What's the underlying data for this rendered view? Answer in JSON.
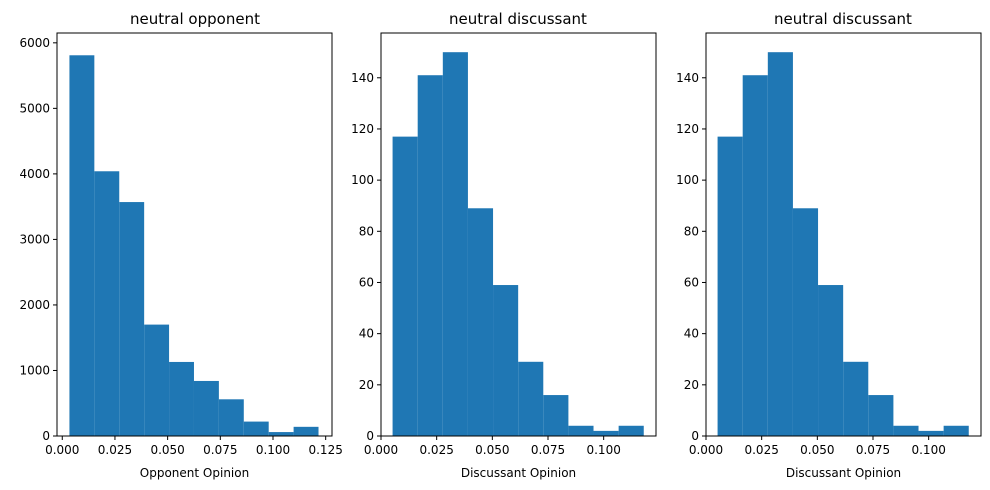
{
  "chart_data": [
    {
      "type": "bar",
      "title": "neutral opponent",
      "xlabel": "Opponent Opinion",
      "ylabel": "",
      "bin_edges": [
        0.0034,
        0.01522,
        0.02704,
        0.03886,
        0.05068,
        0.0625,
        0.07432,
        0.08614,
        0.09796,
        0.10978,
        0.1216
      ],
      "values": [
        5810,
        4040,
        3570,
        1700,
        1130,
        840,
        560,
        220,
        60,
        140
      ],
      "xlim": [
        -0.0025,
        0.128
      ],
      "ylim": [
        0,
        6150
      ],
      "xticks": [
        0.0,
        0.025,
        0.05,
        0.075,
        0.1,
        0.125
      ],
      "xtick_labels": [
        "0.000",
        "0.025",
        "0.050",
        "0.075",
        "0.100",
        "0.125"
      ],
      "yticks": [
        0,
        1000,
        2000,
        3000,
        4000,
        5000,
        6000
      ],
      "ytick_labels": [
        "0",
        "1000",
        "2000",
        "3000",
        "4000",
        "5000",
        "6000"
      ],
      "color": "#1f77b4",
      "grid": false
    },
    {
      "type": "bar",
      "title": "neutral discussant",
      "xlabel": "Discussant Opinion",
      "ylabel": "",
      "bin_edges": [
        0.0052,
        0.01648,
        0.02776,
        0.03904,
        0.05032,
        0.0616,
        0.07288,
        0.08416,
        0.09544,
        0.10672,
        0.118
      ],
      "values": [
        117,
        141,
        150,
        89,
        59,
        29,
        16,
        4,
        2,
        4
      ],
      "xlim": [
        0.0,
        0.1235
      ],
      "ylim": [
        0,
        157.5
      ],
      "xticks": [
        0.0,
        0.025,
        0.05,
        0.075,
        0.1
      ],
      "xtick_labels": [
        "0.000",
        "0.025",
        "0.050",
        "0.075",
        "0.100"
      ],
      "yticks": [
        0,
        20,
        40,
        60,
        80,
        100,
        120,
        140
      ],
      "ytick_labels": [
        "0",
        "20",
        "40",
        "60",
        "80",
        "100",
        "120",
        "140"
      ],
      "color": "#1f77b4",
      "grid": false
    },
    {
      "type": "bar",
      "title": "neutral discussant",
      "xlabel": "Discussant Opinion",
      "ylabel": "",
      "bin_edges": [
        0.0052,
        0.01648,
        0.02776,
        0.03904,
        0.05032,
        0.0616,
        0.07288,
        0.08416,
        0.09544,
        0.10672,
        0.118
      ],
      "values": [
        117,
        141,
        150,
        89,
        59,
        29,
        16,
        4,
        2,
        4
      ],
      "xlim": [
        0.0,
        0.1235
      ],
      "ylim": [
        0,
        157.5
      ],
      "xticks": [
        0.0,
        0.025,
        0.05,
        0.075,
        0.1
      ],
      "xtick_labels": [
        "0.000",
        "0.025",
        "0.050",
        "0.075",
        "0.100"
      ],
      "yticks": [
        0,
        20,
        40,
        60,
        80,
        100,
        120,
        140
      ],
      "ytick_labels": [
        "0",
        "20",
        "40",
        "60",
        "80",
        "100",
        "120",
        "140"
      ],
      "color": "#1f77b4",
      "grid": false
    }
  ]
}
